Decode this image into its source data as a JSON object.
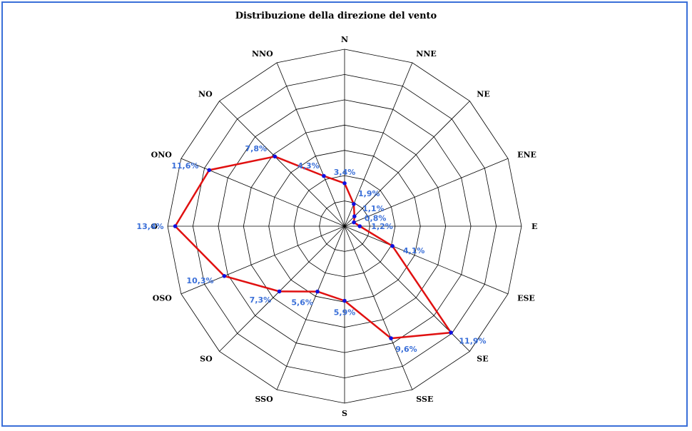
{
  "colors": {
    "frame": "#3a6fd8",
    "grid": "#000000",
    "series_line": "#e01010",
    "series_marker": "#1010e0",
    "data_label": "#3a6fd8"
  },
  "chart_data": {
    "type": "radar",
    "title": "Distribuzione della direzione del vento",
    "categories": [
      "N",
      "NNE",
      "NE",
      "ENE",
      "E",
      "ESE",
      "SE",
      "SSE",
      "S",
      "SSO",
      "SO",
      "OSO",
      "O",
      "ONO",
      "NO",
      "NNO"
    ],
    "values": [
      3.4,
      1.9,
      1.1,
      0.8,
      1.2,
      4.1,
      11.9,
      9.6,
      5.9,
      5.6,
      7.3,
      10.3,
      13.4,
      11.6,
      7.8,
      4.3
    ],
    "value_labels": [
      "3,4%",
      "1,9%",
      "1,1%",
      "0,8%",
      "1,2%",
      "4,1%",
      "11,9%",
      "9,6%",
      "5,9%",
      "5,6%",
      "7,3%",
      "10,3%",
      "13,4%",
      "11,6%",
      "7,8%",
      "4,3%"
    ],
    "rlim": [
      0,
      14
    ],
    "rings": 7,
    "grid": true,
    "legend": "none"
  }
}
